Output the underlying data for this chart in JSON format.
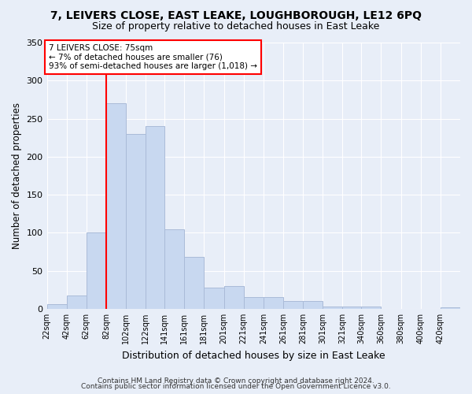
{
  "title1": "7, LEIVERS CLOSE, EAST LEAKE, LOUGHBOROUGH, LE12 6PQ",
  "title2": "Size of property relative to detached houses in East Leake",
  "xlabel": "Distribution of detached houses by size in East Leake",
  "ylabel": "Number of detached properties",
  "bar_color": "#c8d8f0",
  "bar_edge_color": "#aabbd8",
  "bin_labels": [
    "22sqm",
    "42sqm",
    "62sqm",
    "82sqm",
    "102sqm",
    "122sqm",
    "141sqm",
    "161sqm",
    "181sqm",
    "201sqm",
    "221sqm",
    "241sqm",
    "261sqm",
    "281sqm",
    "301sqm",
    "321sqm",
    "340sqm",
    "360sqm",
    "380sqm",
    "400sqm",
    "420sqm"
  ],
  "bar_heights": [
    6,
    18,
    100,
    270,
    230,
    240,
    105,
    68,
    28,
    30,
    15,
    15,
    10,
    10,
    3,
    3,
    3,
    0,
    0,
    0,
    2
  ],
  "ylim": [
    0,
    350
  ],
  "yticks": [
    0,
    50,
    100,
    150,
    200,
    250,
    300,
    350
  ],
  "red_line_x": 82,
  "annotation_line1": "7 LEIVERS CLOSE: 75sqm",
  "annotation_line2": "← 7% of detached houses are smaller (76)",
  "annotation_line3": "93% of semi-detached houses are larger (1,018) →",
  "footer1": "Contains HM Land Registry data © Crown copyright and database right 2024.",
  "footer2": "Contains public sector information licensed under the Open Government Licence v3.0.",
  "bin_edges": [
    22,
    42,
    62,
    82,
    102,
    122,
    141,
    161,
    181,
    201,
    221,
    241,
    261,
    281,
    301,
    321,
    340,
    360,
    380,
    400,
    420,
    440
  ],
  "background_color": "#e8eef8",
  "plot_bg_color": "#e8eef8",
  "grid_color": "#ffffff"
}
